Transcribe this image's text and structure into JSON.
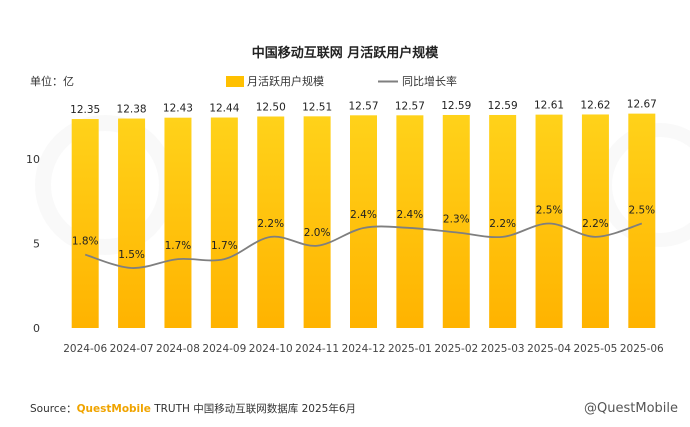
{
  "chart_data": {
    "type": "bar",
    "title": "中国移动互联网 月活跃用户规模",
    "unit_label": "单位：亿",
    "categories": [
      "2024-06",
      "2024-07",
      "2024-08",
      "2024-09",
      "2024-10",
      "2024-11",
      "2024-12",
      "2025-01",
      "2025-02",
      "2025-03",
      "2025-04",
      "2025-05",
      "2025-06"
    ],
    "series": [
      {
        "name": "月活跃用户规模",
        "kind": "bar",
        "values": [
          12.35,
          12.38,
          12.43,
          12.44,
          12.5,
          12.51,
          12.57,
          12.57,
          12.59,
          12.59,
          12.61,
          12.62,
          12.67
        ],
        "labels": [
          "12.35",
          "12.38",
          "12.43",
          "12.44",
          "12.50",
          "12.51",
          "12.57",
          "12.57",
          "12.59",
          "12.59",
          "12.61",
          "12.62",
          "12.67"
        ],
        "color": "#FFC000"
      },
      {
        "name": "同比增长率",
        "kind": "line",
        "values": [
          1.8,
          1.5,
          1.7,
          1.7,
          2.2,
          2.0,
          2.4,
          2.4,
          2.3,
          2.2,
          2.5,
          2.2,
          2.5
        ],
        "labels": [
          "1.8%",
          "1.5%",
          "1.7%",
          "1.7%",
          "2.2%",
          "2.0%",
          "2.4%",
          "2.4%",
          "2.3%",
          "2.2%",
          "2.5%",
          "2.2%",
          "2.5%"
        ],
        "color": "#7f7f7f"
      }
    ],
    "yticks": [
      "0",
      "5",
      "10"
    ],
    "ylim": [
      0,
      14
    ],
    "legend_position": "top-right",
    "grid": false
  },
  "footer": {
    "source_prefix": "Source：",
    "brand": "QuestMobile",
    "source_text": " TRUTH 中国移动互联网数据库 2025年6月",
    "watermark": "@QuestMobile"
  },
  "colors": {
    "bar_top": "#FFD21A",
    "bar_bottom": "#FFB300",
    "line": "#7f7f7f"
  }
}
